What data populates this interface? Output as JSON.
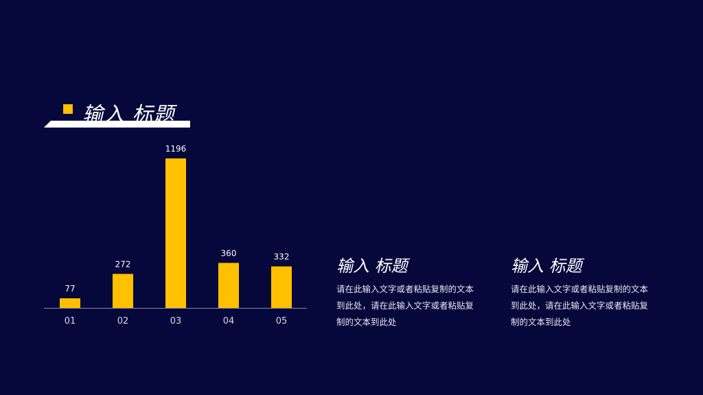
{
  "colors": {
    "background": "#06073a",
    "accent": "#ffc000",
    "axis": "#8a8caa",
    "text": "#ffffff"
  },
  "title": {
    "text": "输入 标题"
  },
  "chart_data": {
    "type": "bar",
    "categories": [
      "01",
      "02",
      "03",
      "04",
      "05"
    ],
    "values": [
      77,
      272,
      1196,
      360,
      332
    ],
    "data_labels": [
      "77",
      "272",
      "1196",
      "360",
      "332"
    ],
    "ylim": [
      0,
      1196
    ],
    "grid": false,
    "legend": "none"
  },
  "columns": [
    {
      "heading": "输入 标题",
      "body": "请在此输入文字或者粘贴复制的文本到此处，请在此输入文字或者粘贴复制的文本到此处"
    },
    {
      "heading": "输入 标题",
      "body": "请在此输入文字或者粘贴复制的文本到此处，请在此输入文字或者粘贴复制的文本到此处"
    }
  ]
}
